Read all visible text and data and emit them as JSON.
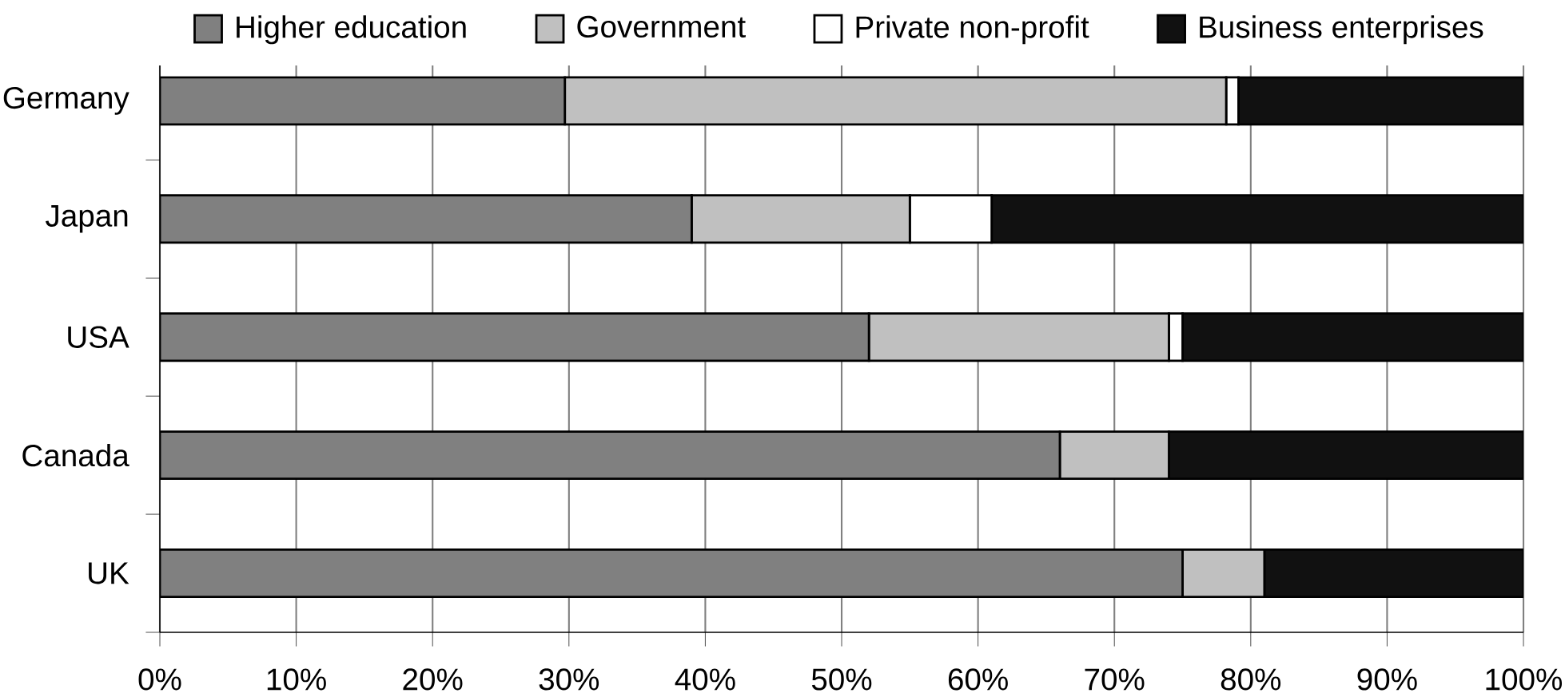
{
  "chart_data": {
    "type": "bar",
    "orientation": "horizontal",
    "stacked": true,
    "categories": [
      "Germany",
      "Japan",
      "USA",
      "Canada",
      "UK"
    ],
    "series": [
      {
        "name": "Higher education",
        "color": "#808080",
        "values": [
          29.7,
          39,
          52,
          66,
          75
        ]
      },
      {
        "name": "Government",
        "color": "#c0c0c0",
        "values": [
          48.5,
          16,
          22,
          8,
          6
        ]
      },
      {
        "name": "Private non-profit",
        "color": "#ffffff",
        "values": [
          0.9,
          6,
          1,
          0,
          0
        ]
      },
      {
        "name": "Business enterprises",
        "color": "#111111",
        "values": [
          20.9,
          39,
          25,
          26,
          19
        ]
      }
    ],
    "xlim": [
      0,
      100
    ],
    "xticks": [
      {
        "value": 0,
        "label": "0%"
      },
      {
        "value": 10,
        "label": "10%"
      },
      {
        "value": 20,
        "label": "20%"
      },
      {
        "value": 30,
        "label": "30%"
      },
      {
        "value": 40,
        "label": "40%"
      },
      {
        "value": 50,
        "label": "50%"
      },
      {
        "value": 60,
        "label": "60%"
      },
      {
        "value": 70,
        "label": "70%"
      },
      {
        "value": 80,
        "label": "80%"
      },
      {
        "value": 90,
        "label": "90%"
      },
      {
        "value": 100,
        "label": "100%"
      }
    ],
    "grid": "x",
    "legend": "top"
  }
}
